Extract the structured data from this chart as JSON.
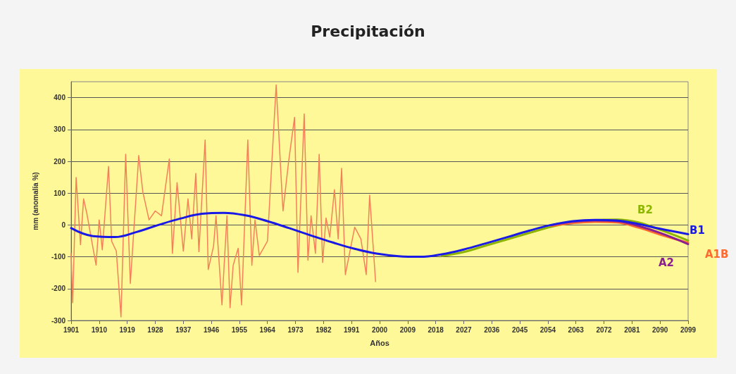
{
  "chart_data": {
    "type": "line",
    "title": "Precipitación",
    "xlabel": "Años",
    "ylabel": "mm (anomalía %)",
    "xlim": [
      1901,
      2099
    ],
    "xticks": [
      1901,
      1910,
      1919,
      1928,
      1937,
      1946,
      1955,
      1964,
      1973,
      1982,
      1991,
      2000,
      2009,
      2018,
      2027,
      2036,
      2045,
      2054,
      2063,
      2072,
      2081,
      2090,
      2099
    ],
    "ylim": [
      -300,
      450
    ],
    "yticks": [
      -300,
      -200,
      -100,
      0,
      100,
      200,
      300,
      400
    ],
    "grid": "y",
    "legend": false,
    "marker": "none",
    "line_style": "solid",
    "series": [
      {
        "color": "#f4805a",
        "x": [
          1901,
          1901.5,
          1902.6,
          1904,
          1905,
          1906,
          1909,
          1910,
          1911,
          1913,
          1914,
          1915.5,
          1917,
          1918.5,
          1920,
          1922.7,
          1924,
          1926,
          1928,
          1930,
          1932.5,
          1933.5,
          1935,
          1937,
          1938.5,
          1939.7,
          1941,
          1942,
          1944,
          1945,
          1946.7,
          1947.5,
          1949.4,
          1951,
          1952,
          1953,
          1954.6,
          1955.7,
          1957.7,
          1959,
          1960,
          1961.4,
          1964,
          1966.8,
          1968.6,
          1969,
          1970.8,
          1972.7,
          1973.8,
          1975.8,
          1977,
          1978,
          1979.4,
          1980.6,
          1981.7,
          1982.8,
          1984,
          1985.5,
          1986.7,
          1987.8,
          1989,
          1992,
          1994,
          1995.7,
          1996.8,
          1998.7
        ],
        "values": [
          -89,
          -244,
          149,
          -62,
          82,
          38,
          -126,
          16,
          -78,
          184,
          -51,
          -82,
          -289,
          222,
          -184,
          218,
          104,
          16,
          44,
          29,
          207,
          -89,
          133,
          -82,
          82,
          -44,
          162,
          -84,
          267,
          -140,
          -67,
          29,
          -251,
          29,
          -260,
          -127,
          -73,
          -251,
          267,
          -127,
          16,
          -96,
          -51,
          440,
          111,
          44,
          200,
          338,
          -149,
          349,
          -111,
          29,
          -89,
          222,
          -118,
          22,
          -38,
          111,
          -44,
          178,
          -156,
          -7,
          -44,
          -156,
          93,
          -178
        ]
      },
      {
        "name": "B2",
        "color": "#8cb400",
        "x": [
          2020,
          2027,
          2034,
          2041,
          2048,
          2055,
          2062,
          2069,
          2076,
          2083,
          2090,
          2099
        ],
        "values": [
          -97,
          -85,
          -65,
          -45,
          -25,
          -6,
          8,
          15,
          17,
          8,
          -15,
          -49
        ]
      },
      {
        "name": "A1B",
        "color": "#ff6a30",
        "x": [
          2055,
          2062,
          2069,
          2076,
          2083,
          2090,
          2099
        ],
        "values": [
          -3,
          6,
          10,
          8,
          -8,
          -30,
          -56
        ]
      },
      {
        "name": "A2",
        "color": "#8a2090",
        "x": [
          2055,
          2062,
          2069,
          2076,
          2083,
          2090,
          2099
        ],
        "values": [
          -1,
          10,
          14,
          12,
          -3,
          -25,
          -60
        ]
      },
      {
        "name": "B1",
        "color": "#1a1ae6",
        "x": [
          1901,
          1908,
          1915,
          1922,
          1929,
          1936,
          1943,
          1950,
          1957,
          1964,
          1971,
          1978,
          1985,
          1992,
          1999,
          2006,
          2013,
          2020,
          2027,
          2034,
          2041,
          2048,
          2055,
          2062,
          2069,
          2076,
          2083,
          2090,
          2099
        ],
        "values": [
          -10,
          -35,
          -38,
          -22,
          0,
          20,
          35,
          38,
          30,
          12,
          -10,
          -33,
          -55,
          -75,
          -90,
          -98,
          -100,
          -92,
          -77,
          -58,
          -38,
          -18,
          0,
          12,
          16,
          14,
          3,
          -12,
          -29
        ]
      }
    ]
  }
}
